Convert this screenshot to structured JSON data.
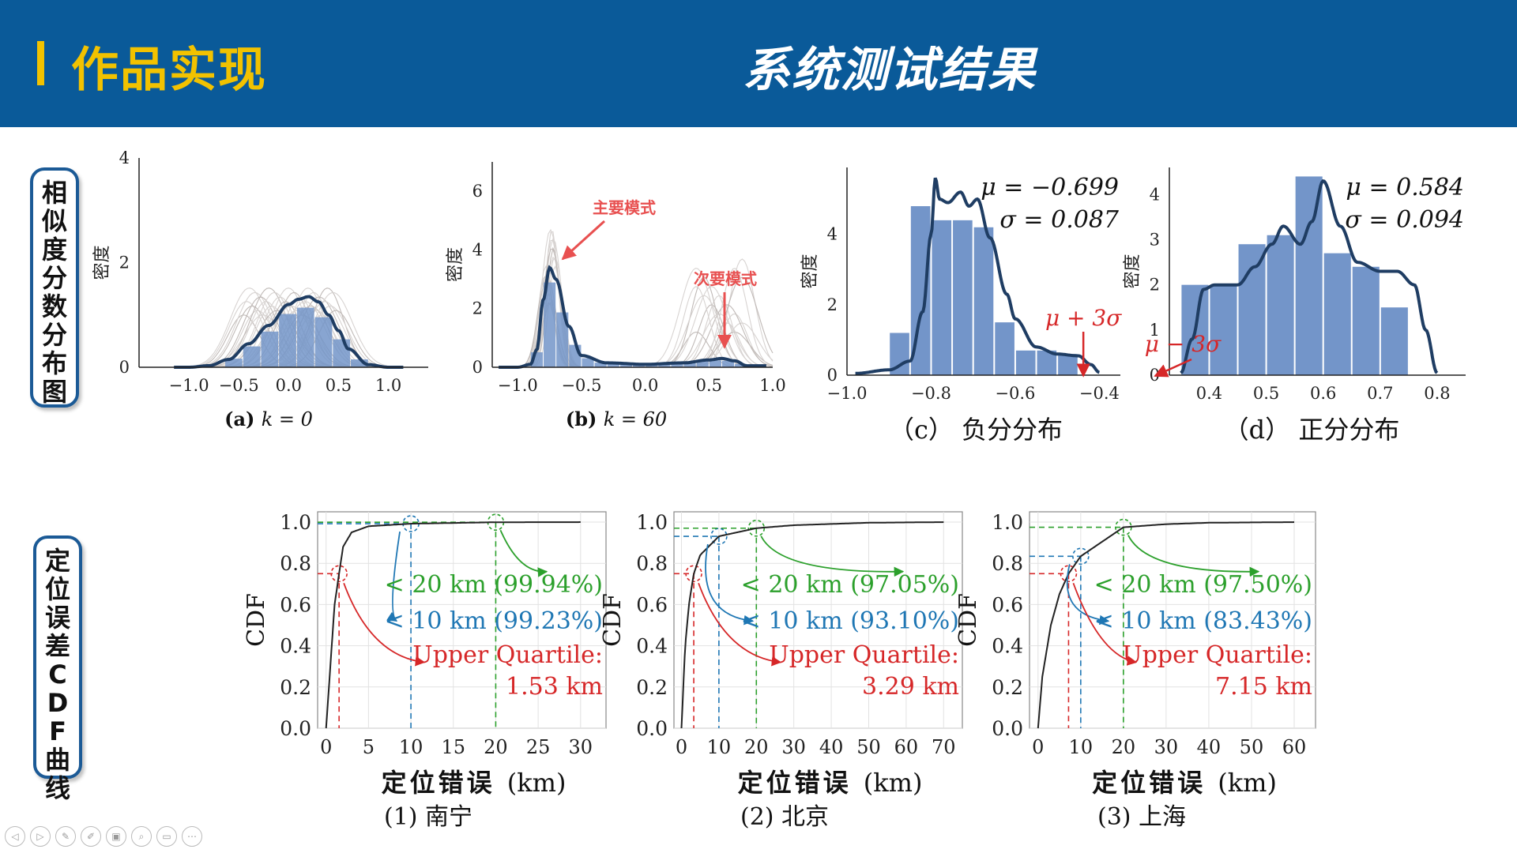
{
  "header": {
    "section": "作品实现",
    "title": "系统测试结果"
  },
  "side_labels": {
    "similarity": "相似度分数分布图",
    "cdf": "定位误差CDF曲线"
  },
  "density_panels": {
    "ylabel": "密度",
    "a": {
      "caption_prefix": "(a)",
      "caption_k": "k = 0",
      "xticks": [
        "−1.0",
        "−0.5",
        "0.0",
        "0.5",
        "1.0"
      ],
      "yticks": [
        "0",
        "2",
        "4"
      ]
    },
    "b": {
      "caption_prefix": "(b)",
      "caption_k": "k = 60",
      "xticks": [
        "−1.0",
        "−0.5",
        "0.0",
        "0.5",
        "1.0"
      ],
      "yticks": [
        "0",
        "2",
        "4",
        "6"
      ],
      "annot_main": "主要模式",
      "annot_secondary": "次要模式"
    },
    "c": {
      "caption": "（c） 负分分布",
      "xticks": [
        "−1.0",
        "−0.8",
        "−0.6",
        "−0.4"
      ],
      "yticks": [
        "0",
        "2",
        "4"
      ],
      "mu": "μ = −0.699",
      "sigma": "σ = 0.087",
      "annot": "μ + 3σ"
    },
    "d": {
      "caption": "（d） 正分分布",
      "xticks": [
        "0.4",
        "0.5",
        "0.6",
        "0.7",
        "0.8"
      ],
      "yticks": [
        "0",
        "1",
        "2",
        "3",
        "4"
      ],
      "mu": "μ = 0.584",
      "sigma": "σ = 0.094",
      "annot": "μ − 3σ"
    }
  },
  "cdf_panels": {
    "ylabel": "CDF",
    "xlabel_cn": "定位错误",
    "xlabel_unit": "(km)",
    "yticks": [
      "0.0",
      "0.2",
      "0.4",
      "0.6",
      "0.8",
      "1.0"
    ],
    "panels": [
      {
        "caption": "(1) 南宁",
        "xticks": [
          "0",
          "5",
          "10",
          "15",
          "20",
          "25",
          "30"
        ],
        "lbl20": "< 20 km (99.94%)",
        "lbl10": "< 10 km (99.23%)",
        "uq_label": "Upper Quartile:",
        "uq_value": "1.53 km"
      },
      {
        "caption": "(2) 北京",
        "xticks": [
          "0",
          "10",
          "20",
          "30",
          "40",
          "50",
          "60",
          "70"
        ],
        "lbl20": "< 20 km (97.05%)",
        "lbl10": "< 10 km (93.10%)",
        "uq_label": "Upper Quartile:",
        "uq_value": "3.29 km"
      },
      {
        "caption": "(3) 上海",
        "xticks": [
          "0",
          "10",
          "20",
          "30",
          "40",
          "50",
          "60"
        ],
        "lbl20": "< 20 km (97.50%)",
        "lbl10": "< 10 km (83.43%)",
        "uq_label": "Upper Quartile:",
        "uq_value": "7.15 km"
      }
    ]
  },
  "colors": {
    "header_bg": "#0a5a99",
    "accent_yellow": "#f2c200",
    "curve": "#1f3d63",
    "bar": "#7395c9",
    "gray_curves": "#9a8f8a",
    "red": "#d62728",
    "green": "#2ca02c",
    "blue": "#1f77b4",
    "annot_red": "#e85050"
  },
  "chart_data": [
    {
      "type": "area",
      "title": "(a) k = 0",
      "x": [
        -1.0,
        -0.8,
        -0.6,
        -0.4,
        -0.2,
        0.0,
        0.1,
        0.2,
        0.3,
        0.4,
        0.5,
        0.6,
        0.8,
        1.0
      ],
      "series": [
        {
          "name": "",
          "values": [
            0,
            0.03,
            0.15,
            0.45,
            0.8,
            1.2,
            1.3,
            1.35,
            1.25,
            1.0,
            0.7,
            0.35,
            0.05,
            0
          ]
        }
      ],
      "ylim": [
        0,
        4
      ],
      "xlim": [
        -1.5,
        1.4
      ]
    },
    {
      "type": "area",
      "title": "(b) k = 60",
      "x": [
        -1.0,
        -0.9,
        -0.85,
        -0.8,
        -0.75,
        -0.7,
        -0.6,
        -0.5,
        -0.3,
        0.0,
        0.3,
        0.5,
        0.6,
        0.7,
        0.8
      ],
      "series": [
        {
          "name": "",
          "values": [
            0,
            0.1,
            0.6,
            2.3,
            3.4,
            3.0,
            1.4,
            0.4,
            0.15,
            0.1,
            0.15,
            0.25,
            0.3,
            0.22,
            0.05
          ]
        }
      ],
      "ylim": [
        0,
        7
      ],
      "xlim": [
        -1.2,
        1.0
      ]
    },
    {
      "type": "bar",
      "title": "（c） 负分分布",
      "categories": [
        "-0.85",
        "-0.8",
        "-0.75",
        "-0.7",
        "-0.65",
        "-0.6",
        "-0.55",
        "-0.5",
        "-0.45",
        "-0.4"
      ],
      "values": [
        1.2,
        4.8,
        4.4,
        4.4,
        4.2,
        1.5,
        0.7,
        0.7,
        0.6,
        0.0
      ],
      "mu": -0.699,
      "sigma": 0.087,
      "xlim": [
        -1.0,
        -0.35
      ],
      "ylim": [
        0,
        5.9
      ]
    },
    {
      "type": "bar",
      "title": "（d） 正分分布",
      "categories": [
        "0.4",
        "0.45",
        "0.5",
        "0.55",
        "0.6",
        "0.65",
        "0.7",
        "0.75"
      ],
      "values": [
        2.0,
        2.0,
        2.9,
        3.1,
        4.4,
        2.7,
        2.4,
        1.5
      ],
      "mu": 0.584,
      "sigma": 0.094,
      "xlim": [
        0.33,
        0.85
      ],
      "ylim": [
        0,
        4.6
      ]
    },
    {
      "type": "line",
      "title": "(1) 南宁",
      "xlabel": "定位错误 (km)",
      "ylabel": "CDF",
      "x": [
        0,
        0.5,
        1,
        1.53,
        2,
        3,
        5,
        10,
        20,
        30
      ],
      "y": [
        0,
        0.3,
        0.6,
        0.75,
        0.88,
        0.95,
        0.98,
        0.9923,
        0.9994,
        1.0
      ],
      "xlim": [
        -1,
        33
      ],
      "ylim": [
        0,
        1.05
      ]
    },
    {
      "type": "line",
      "title": "(2) 北京",
      "xlabel": "定位错误 (km)",
      "ylabel": "CDF",
      "x": [
        0,
        1,
        2,
        3.29,
        5,
        10,
        20,
        30,
        50,
        70
      ],
      "y": [
        0,
        0.4,
        0.6,
        0.75,
        0.84,
        0.931,
        0.9705,
        0.985,
        0.997,
        1.0
      ],
      "xlim": [
        -2,
        75
      ],
      "ylim": [
        0,
        1.05
      ]
    },
    {
      "type": "line",
      "title": "(3) 上海",
      "xlabel": "定位错误 (km)",
      "ylabel": "CDF",
      "x": [
        0,
        1,
        3,
        5,
        7.15,
        10,
        20,
        30,
        40,
        60
      ],
      "y": [
        0,
        0.25,
        0.5,
        0.65,
        0.75,
        0.8343,
        0.975,
        0.99,
        0.997,
        1.0
      ],
      "xlim": [
        -2,
        65
      ],
      "ylim": [
        0,
        1.05
      ]
    }
  ]
}
